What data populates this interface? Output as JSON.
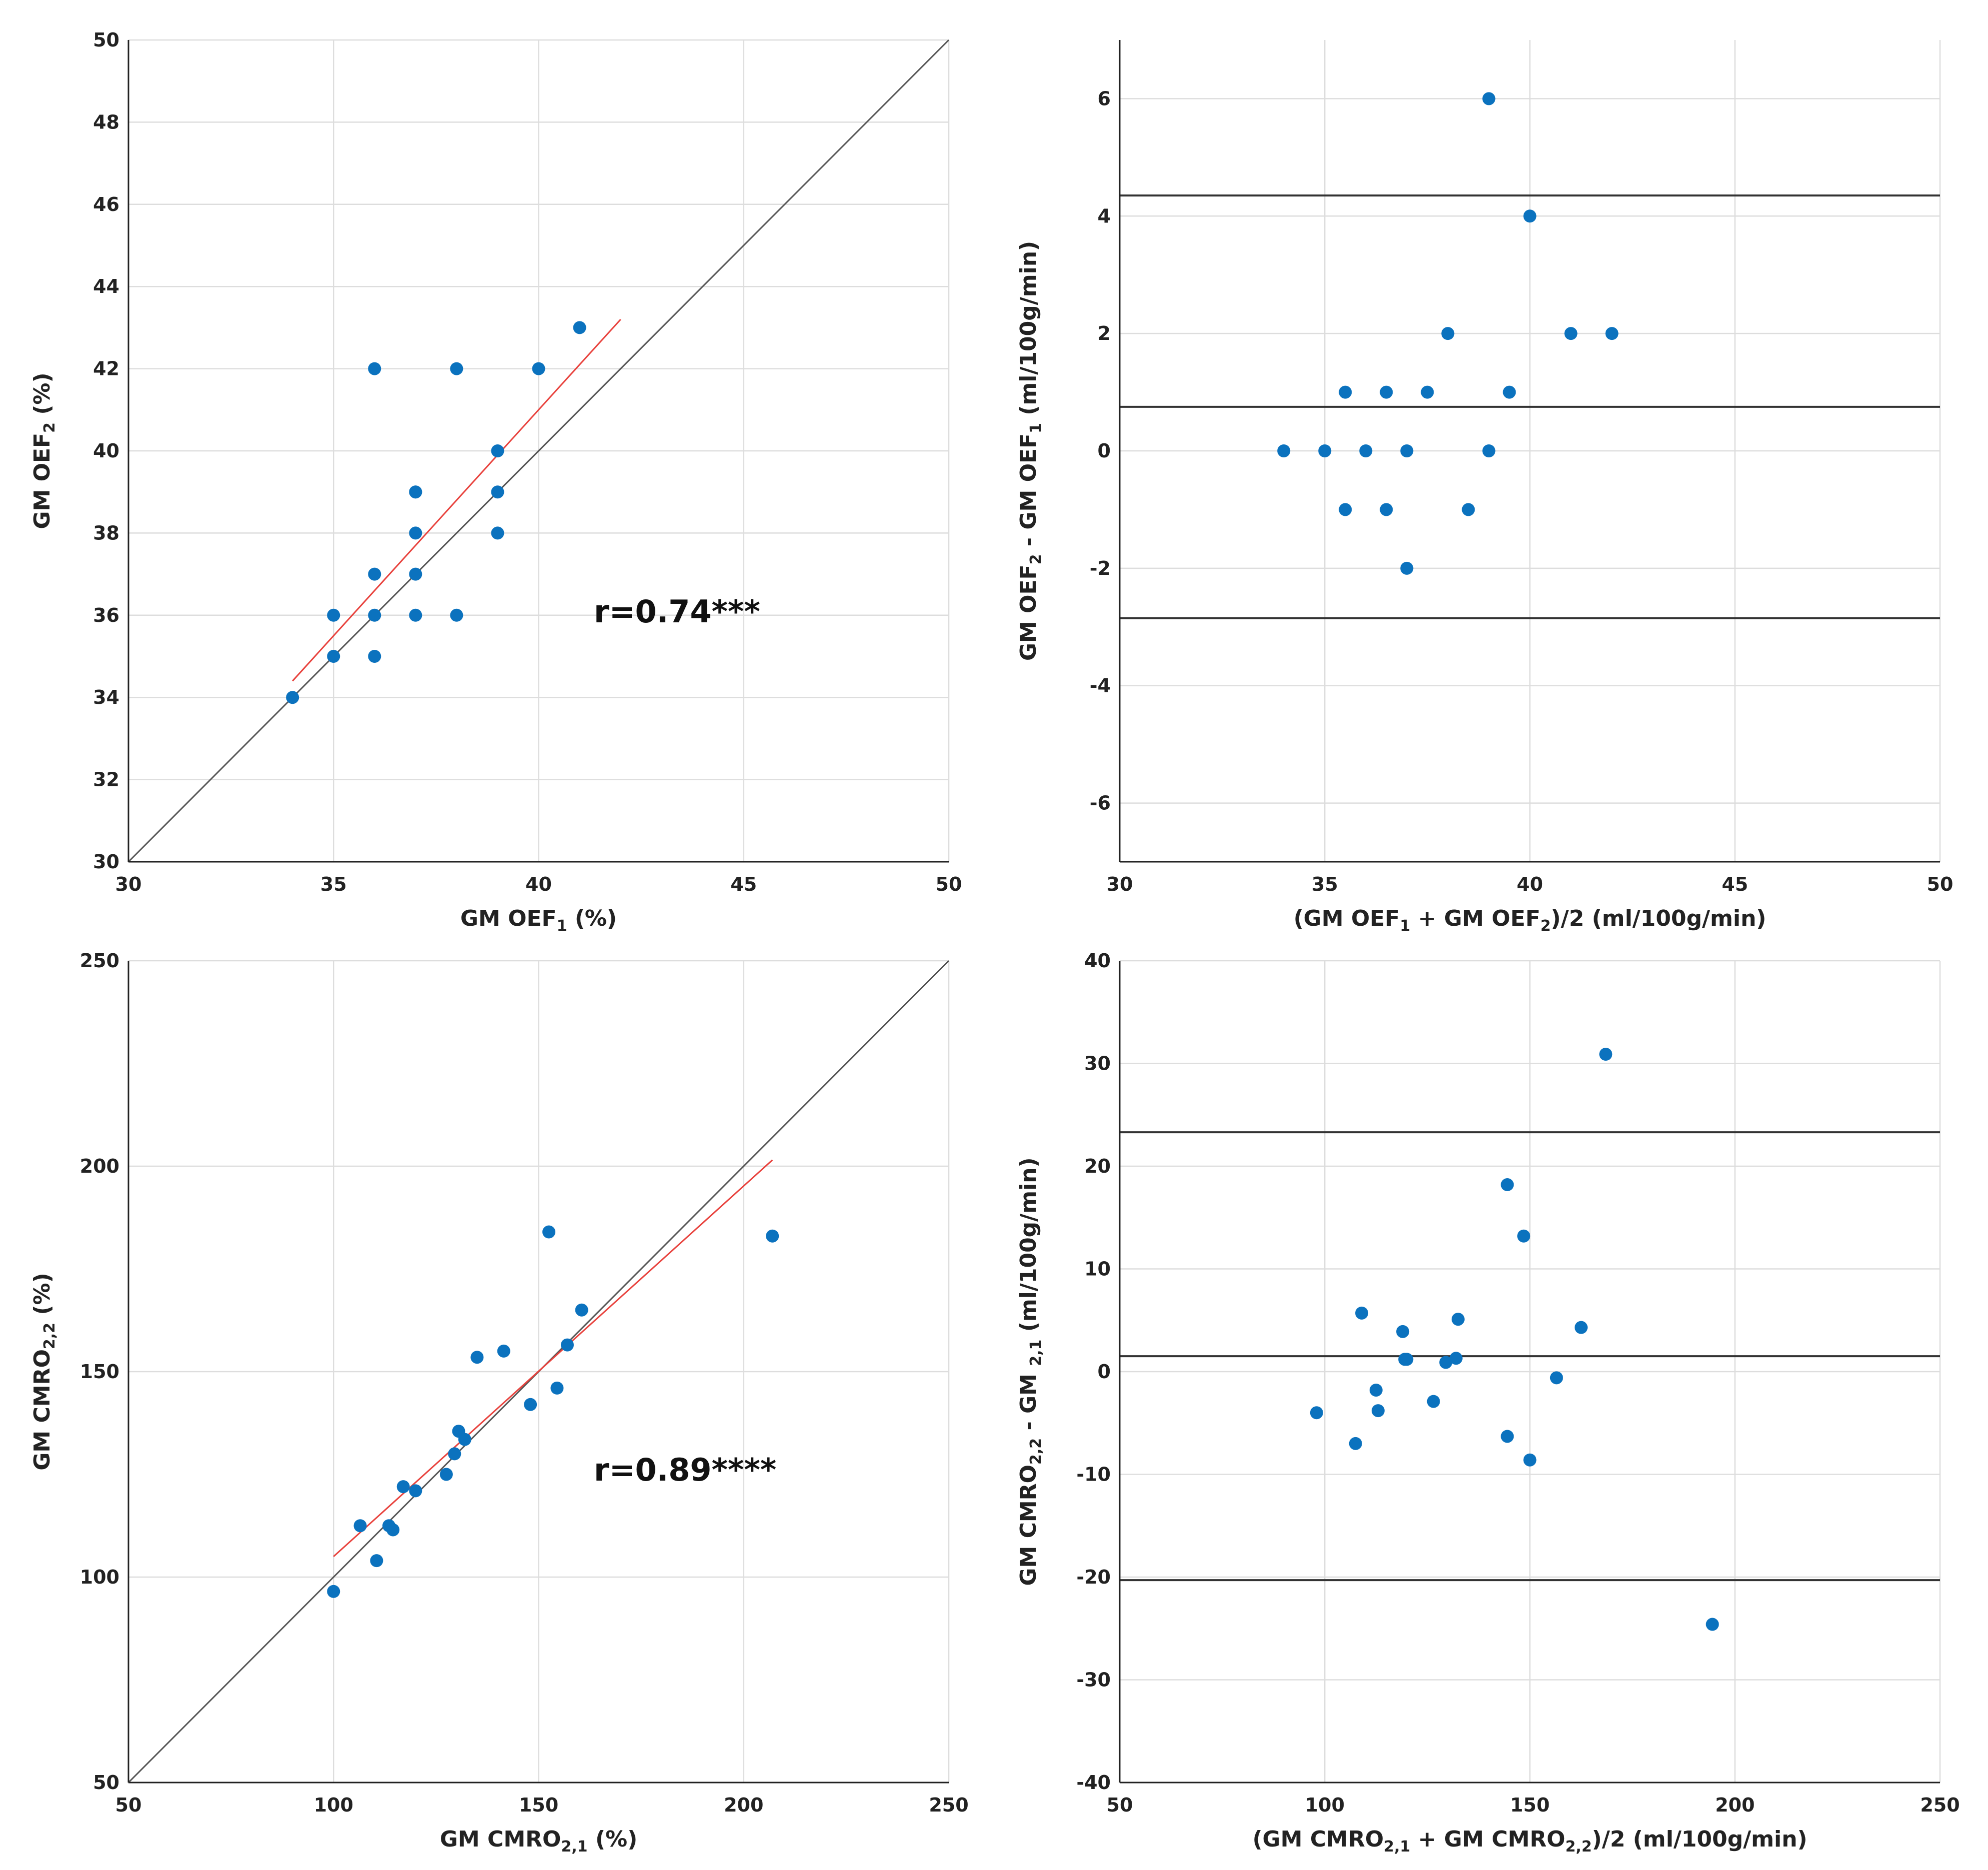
{
  "colors": {
    "points": "#0b72be",
    "fit_line": "#e8413c",
    "identity_line": "#555555",
    "limit_lines": "#333333",
    "grid": "#dddddd"
  },
  "chart_data": [
    {
      "id": "oef_scatter",
      "type": "scatter",
      "xlabel": {
        "pre": "GM OEF",
        "sub": "1",
        "post": " (%)"
      },
      "ylabel": {
        "pre": "GM OEF",
        "sub": "2",
        "post": " (%)"
      },
      "xlim": [
        30,
        50
      ],
      "ylim": [
        30,
        50
      ],
      "xticks": [
        30,
        35,
        40,
        45,
        50
      ],
      "yticks": [
        30,
        32,
        34,
        36,
        38,
        40,
        42,
        44,
        46,
        48,
        50
      ],
      "identity_line": true,
      "fit_line": {
        "x": [
          34,
          42
        ],
        "y": [
          34.4,
          43.2
        ]
      },
      "annotation": "r=0.74***",
      "x": [
        34,
        35,
        35,
        36,
        36,
        36,
        36,
        37,
        37,
        37,
        37,
        37,
        38,
        38,
        39,
        39,
        39,
        40,
        41
      ],
      "y": [
        34,
        35,
        36,
        35,
        36,
        37,
        42,
        36,
        37,
        38,
        39,
        39,
        36,
        42,
        38,
        39,
        40,
        42,
        43
      ]
    },
    {
      "id": "oef_bland_altman",
      "type": "scatter",
      "xlabel": {
        "pre": "(GM OEF",
        "sub": "1",
        "mid": " + GM OEF",
        "sub2": "2",
        "post": ")/2 (ml/100g/min)"
      },
      "ylabel": {
        "pre": "GM OEF",
        "sub": "2",
        "mid": " - GM OEF",
        "sub2": "1",
        "post": " (ml/100g/min)"
      },
      "xlim": [
        30,
        50
      ],
      "ylim": [
        -7,
        7
      ],
      "xticks": [
        30,
        35,
        40,
        45,
        50
      ],
      "yticks": [
        -6,
        -4,
        -2,
        0,
        2,
        4,
        6
      ],
      "hlines": [
        4.35,
        0.75,
        -2.85
      ],
      "x": [
        34,
        35,
        35.5,
        35.5,
        36,
        36.5,
        36.5,
        37,
        37,
        37.5,
        38,
        38.5,
        39,
        39,
        39.5,
        40,
        41,
        42
      ],
      "y": [
        0,
        0,
        1,
        -1,
        0,
        1,
        -1,
        0,
        -2,
        1,
        2,
        -1,
        0,
        6,
        1,
        4,
        2,
        2
      ]
    },
    {
      "id": "cmro_scatter",
      "type": "scatter",
      "xlabel": {
        "pre": "GM CMRO",
        "sub": "2,1",
        "post": " (%)"
      },
      "ylabel": {
        "pre": "GM CMRO",
        "sub": "2,2",
        "post": " (%)"
      },
      "xlim": [
        50,
        250
      ],
      "ylim": [
        50,
        250
      ],
      "xticks": [
        50,
        100,
        150,
        200,
        250
      ],
      "yticks": [
        50,
        100,
        150,
        200,
        250
      ],
      "identity_line": true,
      "fit_line": {
        "x": [
          100,
          207
        ],
        "y": [
          105,
          201.5
        ]
      },
      "annotation": "r=0.89****",
      "x": [
        100,
        106.5,
        110.5,
        113.5,
        114.5,
        117,
        120,
        127.5,
        129.5,
        130.5,
        132,
        135,
        141.5,
        148,
        152.5,
        154.5,
        157,
        160.5,
        207
      ],
      "y": [
        96.5,
        112.5,
        104,
        112.5,
        111.5,
        122,
        121,
        125,
        130,
        135.5,
        133.5,
        153.5,
        155,
        142,
        184,
        146,
        156.5,
        165,
        183
      ]
    },
    {
      "id": "cmro_bland_altman",
      "type": "scatter",
      "xlabel": {
        "pre": "(GM CMRO",
        "sub": "2,1",
        "mid": " + GM CMRO",
        "sub2": "2,2",
        "post": ")/2 (ml/100g/min)"
      },
      "ylabel": {
        "pre": "GM CMRO",
        "sub": "2,2",
        "mid": " - GM ",
        "sub2": "2,1",
        "post": " (ml/100g/min)"
      },
      "xlim": [
        50,
        250
      ],
      "ylim": [
        -40,
        40
      ],
      "xticks": [
        50,
        100,
        150,
        200,
        250
      ],
      "yticks": [
        -40,
        -30,
        -20,
        -10,
        0,
        10,
        20,
        30,
        40
      ],
      "hlines": [
        23.3,
        1.5,
        -20.3
      ],
      "x": [
        98,
        107.5,
        109,
        112.5,
        113,
        119,
        119.5,
        120,
        126.5,
        129.5,
        132,
        132.5,
        144.5,
        144.5,
        148.5,
        150,
        156.5,
        162.5,
        168.5,
        194.5
      ],
      "y": [
        -4,
        -7,
        5.7,
        -1.8,
        -3.8,
        3.9,
        1.2,
        1.2,
        -2.9,
        0.9,
        1.3,
        5.1,
        18.2,
        -6.3,
        13.2,
        -8.6,
        -0.6,
        4.3,
        30.9,
        -24.6
      ]
    }
  ]
}
